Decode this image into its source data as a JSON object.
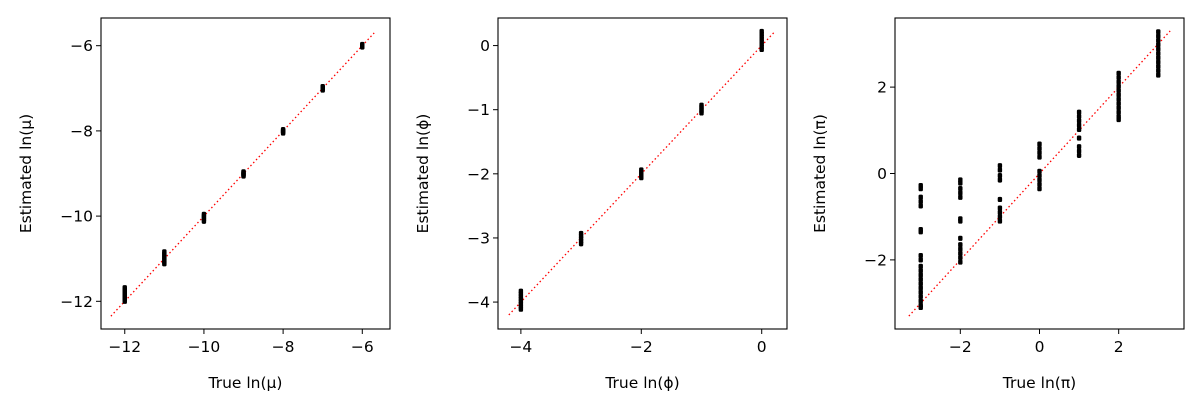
{
  "chart_data": [
    {
      "type": "scatter",
      "xlabel": "True ln(μ)",
      "ylabel": "Estimated ln(μ)",
      "xlim": [
        -12.6,
        -5.3
      ],
      "ylim": [
        -12.65,
        -5.35
      ],
      "xticks": [
        -12,
        -10,
        -8,
        -6
      ],
      "yticks": [
        -12,
        -10,
        -8,
        -6
      ],
      "xtick_labels": [
        "−12",
        "−10",
        "−8",
        "−6"
      ],
      "ytick_labels": [
        "−12",
        "−10",
        "−8",
        "−6"
      ],
      "reference_line": [
        [
          -12.35,
          -12.35
        ],
        [
          -5.7,
          -5.7
        ]
      ],
      "groups": [
        {
          "x": -12,
          "y": [
            -11.68,
            -11.72,
            -11.76,
            -11.8,
            -11.84,
            -11.88,
            -11.92,
            -11.96,
            -12.0
          ]
        },
        {
          "x": -11,
          "y": [
            -10.84,
            -10.88,
            -10.92,
            -10.96,
            -11.0,
            -11.04,
            -11.08,
            -11.12
          ]
        },
        {
          "x": -10,
          "y": [
            -9.96,
            -10.0,
            -10.04,
            -10.08,
            -10.12
          ]
        },
        {
          "x": -9,
          "y": [
            -8.96,
            -8.98,
            -9.0,
            -9.02,
            -9.04,
            -9.06
          ]
        },
        {
          "x": -8,
          "y": [
            -7.97,
            -7.99,
            -8.01,
            -8.03,
            -8.05
          ]
        },
        {
          "x": -7,
          "y": [
            -6.96,
            -6.98,
            -7.0,
            -7.02,
            -7.04
          ]
        },
        {
          "x": -6,
          "y": [
            -5.97,
            -5.99,
            -6.01,
            -6.03
          ]
        }
      ]
    },
    {
      "type": "scatter",
      "xlabel": "True ln(ϕ)",
      "ylabel": "Estimated ln(ϕ)",
      "xlim": [
        -4.38,
        0.42
      ],
      "ylim": [
        -4.42,
        0.43
      ],
      "xticks": [
        -4,
        -2,
        0
      ],
      "yticks": [
        -4,
        -3,
        -2,
        -1,
        0
      ],
      "xtick_labels": [
        "−4",
        "−2",
        "0"
      ],
      "ytick_labels": [
        "−4",
        "−3",
        "−2",
        "−1",
        "0"
      ],
      "reference_line": [
        [
          -4.2,
          -4.2
        ],
        [
          0.22,
          0.22
        ]
      ],
      "groups": [
        {
          "x": -4,
          "y": [
            -3.83,
            -3.87,
            -3.91,
            -3.95,
            -3.99,
            -4.03,
            -4.07,
            -4.11
          ]
        },
        {
          "x": -3,
          "y": [
            -2.93,
            -2.97,
            -3.01,
            -3.05,
            -3.09
          ]
        },
        {
          "x": -2,
          "y": [
            -1.94,
            -1.97,
            -2.0,
            -2.03,
            -2.06
          ]
        },
        {
          "x": -1,
          "y": [
            -0.93,
            -0.96,
            -0.99,
            -1.02,
            -1.05
          ]
        },
        {
          "x": 0,
          "y": [
            0.22,
            0.18,
            0.14,
            0.1,
            0.06,
            0.02,
            -0.02,
            -0.06
          ]
        }
      ]
    },
    {
      "type": "scatter",
      "xlabel": "True ln(π)",
      "ylabel": "Estimated ln(π)",
      "xlim": [
        -3.65,
        3.65
      ],
      "ylim": [
        -3.6,
        3.6
      ],
      "xticks": [
        -2,
        0,
        2
      ],
      "yticks": [
        -2,
        0,
        2
      ],
      "xtick_labels": [
        "−2",
        "0",
        "2"
      ],
      "ytick_labels": [
        "−2",
        "0",
        "2"
      ],
      "reference_line": [
        [
          -3.3,
          -3.3
        ],
        [
          3.3,
          3.3
        ]
      ],
      "groups": [
        {
          "x": -3,
          "y": [
            -0.28,
            -0.35,
            -0.55,
            -0.65,
            -0.75,
            -1.3,
            -1.35,
            -1.9,
            -2.0,
            -2.15,
            -2.25,
            -2.35,
            -2.45,
            -2.55,
            -2.65,
            -2.75,
            -2.85,
            -2.95,
            -3.05,
            -3.1
          ]
        },
        {
          "x": -2,
          "y": [
            -0.15,
            -0.22,
            -0.35,
            -0.45,
            -0.55,
            -1.05,
            -1.1,
            -1.5,
            -1.65,
            -1.75,
            -1.85,
            -1.95,
            -2.05
          ]
        },
        {
          "x": -1,
          "y": [
            0.18,
            0.08,
            -0.05,
            -0.15,
            -0.6,
            -0.8,
            -0.9,
            -1.0,
            -1.1
          ]
        },
        {
          "x": 0,
          "y": [
            0.68,
            0.58,
            0.48,
            0.38,
            0.05,
            -0.05,
            -0.15,
            -0.25,
            -0.35
          ]
        },
        {
          "x": 1,
          "y": [
            1.42,
            1.32,
            1.22,
            1.12,
            1.02,
            0.82,
            0.62,
            0.52,
            0.42
          ]
        },
        {
          "x": 2,
          "y": [
            2.32,
            2.22,
            2.12,
            2.02,
            1.92,
            1.82,
            1.72,
            1.62,
            1.52,
            1.42,
            1.32,
            1.25
          ]
        },
        {
          "x": 3,
          "y": [
            3.28,
            3.18,
            3.08,
            2.98,
            2.88,
            2.78,
            2.68,
            2.58,
            2.48,
            2.38,
            2.28
          ]
        }
      ]
    }
  ]
}
